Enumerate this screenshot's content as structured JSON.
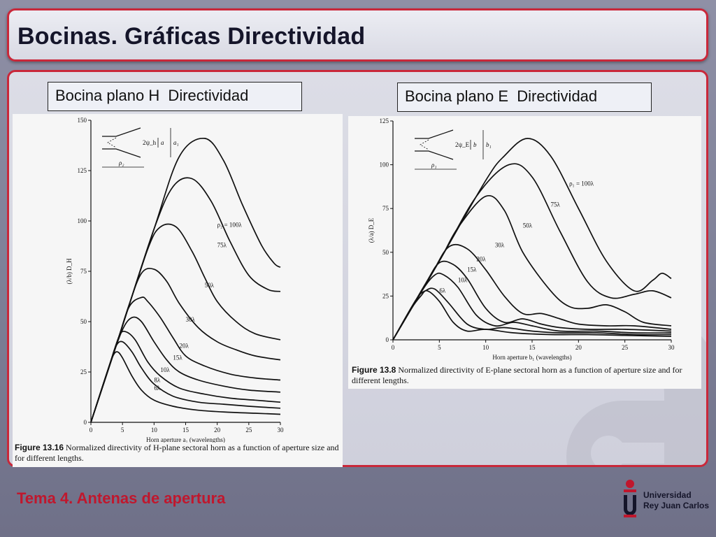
{
  "slide": {
    "title": "Bocinas. Gráficas Directividad",
    "footer": "Tema 4. Antenas de apertura"
  },
  "logo": {
    "line1": "Universidad",
    "line2": "Rey Juan Carlos",
    "icon": "university-crest-icon"
  },
  "colors": {
    "accent": "#c9283a",
    "footer_text": "#c0172d",
    "title_text": "#15152a"
  },
  "panels": [
    {
      "label": "Bocina plano H  Directividad"
    },
    {
      "label": "Bocina plano E  Directividad"
    }
  ],
  "chart_data": [
    {
      "type": "line",
      "figure_id": "Figure 13.16",
      "caption": "Normalized directivity of H-plane sectoral horn as a function of aperture size and for different lengths.",
      "xlabel": "Horn aperture a₁ (wavelengths)",
      "ylabel": "(λ/b) D_H",
      "xlim": [
        0,
        30
      ],
      "ylim": [
        0,
        150
      ],
      "x_ticks": [
        0,
        5,
        10,
        15,
        20,
        25,
        30
      ],
      "y_ticks": [
        0,
        25,
        50,
        75,
        100,
        125,
        150
      ],
      "inset_labels": {
        "angle": "2ψ_h",
        "a": "a",
        "a1": "a₁",
        "rho": "ρ₂"
      },
      "series": [
        {
          "name": "ρ₂ = 100λ",
          "x": [
            0,
            5,
            10,
            14,
            18,
            21,
            24,
            27,
            29,
            30
          ],
          "y": [
            0,
            48,
            96,
            132,
            141,
            130,
            108,
            88,
            79,
            77
          ]
        },
        {
          "name": "75λ",
          "x": [
            0,
            5,
            10,
            13,
            16,
            19,
            22,
            25,
            28,
            30
          ],
          "y": [
            0,
            48,
            96,
            117,
            121,
            110,
            90,
            73,
            66,
            65
          ]
        },
        {
          "name": "50λ",
          "x": [
            0,
            5,
            9,
            11,
            13.5,
            16,
            18,
            20,
            23,
            26,
            30
          ],
          "y": [
            0,
            48,
            86,
            97,
            97,
            85,
            72,
            60,
            50,
            44,
            41
          ]
        },
        {
          "name": "30λ",
          "x": [
            0,
            4,
            6,
            8,
            10,
            12,
            14,
            17,
            20,
            23,
            26,
            30
          ],
          "y": [
            0,
            38,
            58,
            74,
            76,
            70,
            59,
            47,
            40,
            36,
            33,
            31
          ]
        },
        {
          "name": "20λ",
          "x": [
            0,
            4,
            6,
            8,
            9,
            11,
            13,
            15,
            18,
            22,
            26,
            30
          ],
          "y": [
            0,
            38,
            57,
            62,
            60,
            52,
            42,
            33,
            28,
            24,
            22,
            21
          ]
        },
        {
          "name": "15λ",
          "x": [
            0,
            3,
            5,
            6.5,
            8,
            10,
            12,
            14,
            17,
            21,
            25,
            30
          ],
          "y": [
            0,
            29,
            46,
            52,
            50,
            40,
            31,
            25,
            21,
            18,
            16,
            15
          ]
        },
        {
          "name": "10λ",
          "x": [
            0,
            3,
            4.5,
            5.5,
            7,
            9,
            11,
            14,
            18,
            22,
            26,
            30
          ],
          "y": [
            0,
            29,
            43,
            45,
            41,
            30,
            23,
            17,
            14,
            12,
            11,
            10
          ]
        },
        {
          "name": "8λ",
          "x": [
            0,
            3,
            4,
            5,
            6.5,
            8,
            10,
            13,
            17,
            21,
            25,
            30
          ],
          "y": [
            0,
            29,
            38,
            40,
            35,
            27,
            19,
            13,
            10,
            9,
            8,
            7
          ]
        },
        {
          "name": "6λ",
          "x": [
            0,
            2.5,
            3.5,
            4.2,
            5,
            6.5,
            8,
            10,
            13,
            17,
            22,
            26,
            30
          ],
          "y": [
            0,
            24,
            33,
            35,
            32,
            23,
            16,
            11,
            8,
            6,
            5,
            4.5,
            4
          ]
        }
      ]
    },
    {
      "type": "line",
      "figure_id": "Figure 13.8",
      "caption": "Normalized directivity of E-plane sectoral horn as a function of aperture size and for different lengths.",
      "xlabel": "Horn aperture b₁ (wavelengths)",
      "ylabel": "(λ/a) D_E",
      "xlim": [
        0,
        30
      ],
      "ylim": [
        0,
        125
      ],
      "x_ticks": [
        0,
        5,
        10,
        15,
        20,
        25,
        30
      ],
      "y_ticks": [
        0,
        25,
        50,
        75,
        100,
        125
      ],
      "inset_labels": {
        "angle": "2ψ_E",
        "b": "b",
        "b1": "b₁",
        "rho": "ρ₁"
      },
      "series": [
        {
          "name": "ρ₁ = 100λ",
          "x": [
            0,
            5,
            10,
            12,
            14.5,
            17,
            20,
            23,
            26,
            28,
            29,
            30
          ],
          "y": [
            0,
            45,
            91,
            105,
            115,
            105,
            75,
            45,
            28,
            34,
            38,
            35
          ]
        },
        {
          "name": "75λ",
          "x": [
            0,
            5,
            9,
            12.5,
            15,
            18,
            21,
            23.5,
            26,
            28,
            30
          ],
          "y": [
            0,
            45,
            82,
            100,
            93,
            62,
            33,
            24,
            26,
            28,
            24
          ]
        },
        {
          "name": "50λ",
          "x": [
            0,
            5,
            7,
            10,
            12,
            14,
            17,
            19,
            21,
            23,
            25,
            27,
            30
          ],
          "y": [
            0,
            45,
            64,
            82,
            74,
            50,
            28,
            19,
            18,
            20,
            16,
            10,
            8
          ]
        },
        {
          "name": "30λ",
          "x": [
            0,
            4,
            6,
            8,
            10,
            12,
            14,
            16,
            18,
            20,
            23,
            26,
            30
          ],
          "y": [
            0,
            36,
            53,
            52,
            40,
            25,
            15,
            15,
            12,
            9,
            8,
            8,
            6
          ]
        },
        {
          "name": "20λ",
          "x": [
            0,
            3.5,
            5,
            6.5,
            8,
            10,
            12,
            14,
            16,
            18,
            21,
            25,
            30
          ],
          "y": [
            0,
            32,
            44,
            43,
            35,
            18,
            10,
            12,
            9,
            7,
            6,
            6,
            5
          ]
        },
        {
          "name": "15λ",
          "x": [
            0,
            3,
            4.5,
            5.5,
            7,
            9,
            11,
            13,
            15,
            18,
            22,
            26,
            30
          ],
          "y": [
            0,
            27,
            37,
            37,
            30,
            14,
            8,
            10,
            8,
            5,
            5,
            4,
            4
          ]
        },
        {
          "name": "10λ",
          "x": [
            0,
            2.5,
            3.5,
            4.5,
            6,
            8,
            10,
            12,
            15,
            18,
            22,
            26,
            30
          ],
          "y": [
            0,
            23,
            28,
            29,
            21,
            9,
            6,
            7,
            5,
            4,
            4,
            3,
            3
          ]
        },
        {
          "name": "6λ",
          "x": [
            0,
            2,
            3,
            3.7,
            5,
            6.5,
            8,
            10,
            13,
            17,
            21,
            25,
            30
          ],
          "y": [
            0,
            18,
            25,
            28,
            22,
            10,
            5,
            6,
            4,
            3,
            3,
            2.5,
            2
          ]
        }
      ]
    }
  ]
}
